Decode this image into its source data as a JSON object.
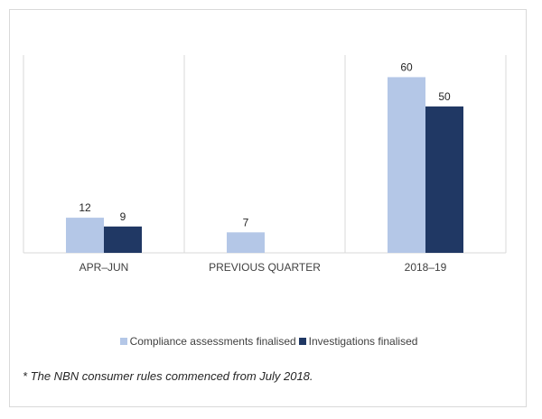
{
  "chart_data": {
    "type": "bar",
    "categories": [
      "APR–JUN",
      "PREVIOUS QUARTER",
      "2018–19"
    ],
    "series": [
      {
        "name": "Compliance assessments finalised",
        "values": [
          12,
          7,
          60
        ],
        "color": "#b4c7e7"
      },
      {
        "name": "Investigations finalised",
        "values": [
          9,
          null,
          50
        ],
        "color": "#203864"
      }
    ],
    "ylim": [
      0,
      70
    ],
    "grid": false,
    "legend_position": "bottom"
  },
  "footnote": "* The NBN consumer rules commenced from July 2018."
}
